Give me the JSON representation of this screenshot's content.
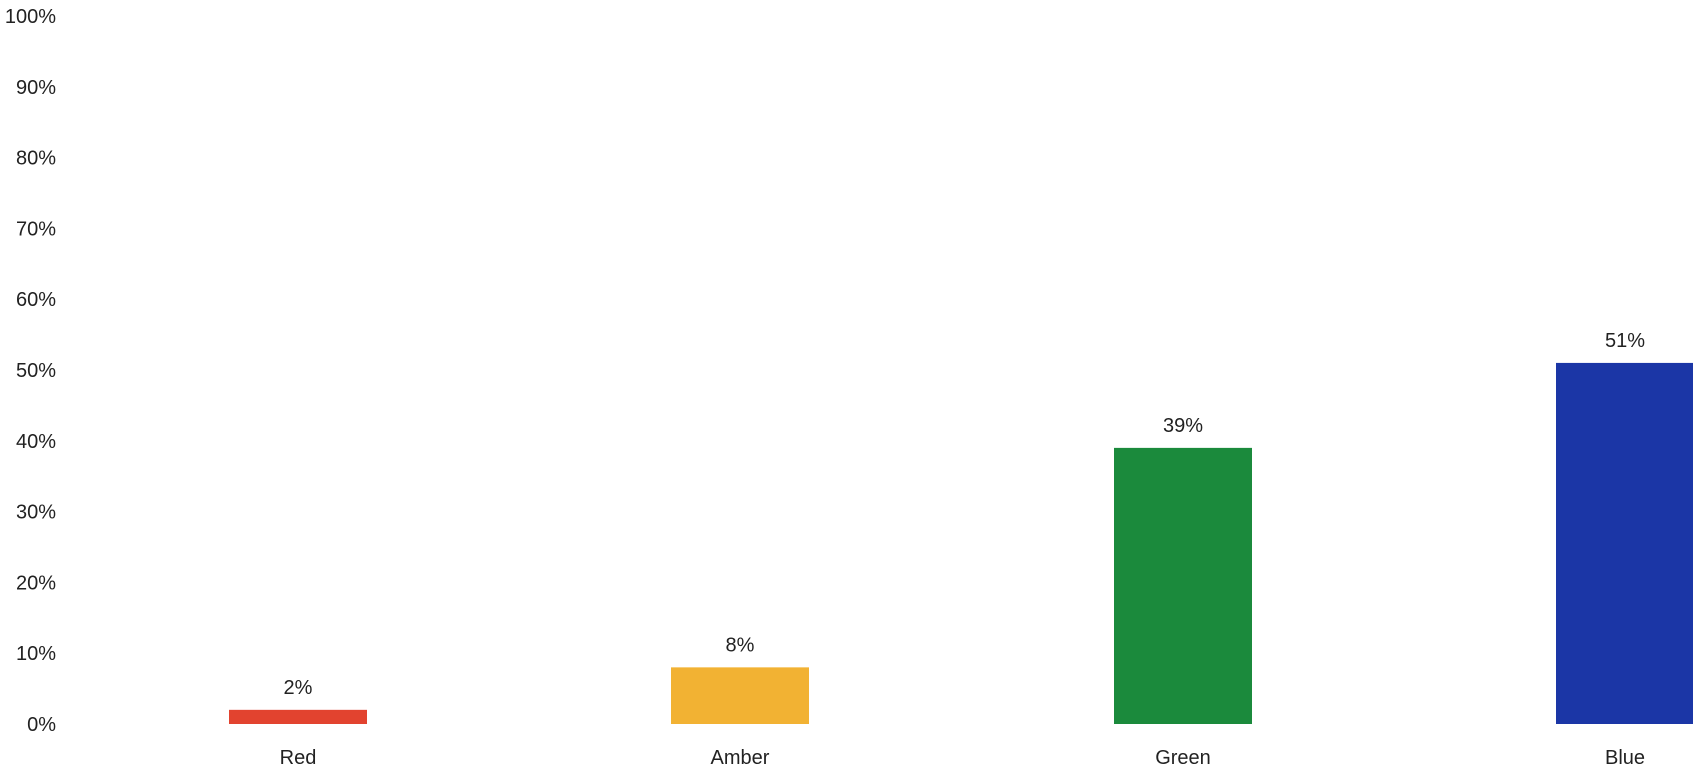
{
  "chart_data": {
    "type": "bar",
    "title": "",
    "xlabel": "",
    "ylabel": "",
    "categories": [
      "Red",
      "Amber",
      "Green",
      "Blue"
    ],
    "values": [
      2,
      8,
      39,
      51
    ],
    "data_labels": [
      "2%",
      "8%",
      "39%",
      "51%"
    ],
    "colors": [
      "#e2432f",
      "#f2b233",
      "#1b8a3c",
      "#1b36a6"
    ],
    "ylim": [
      0,
      100
    ],
    "yticks": [
      0,
      10,
      20,
      30,
      40,
      50,
      60,
      70,
      80,
      90,
      100
    ],
    "ytick_labels": [
      "0%",
      "10%",
      "20%",
      "30%",
      "40%",
      "50%",
      "60%",
      "70%",
      "80%",
      "90%",
      "100%"
    ],
    "grid": false,
    "legend": "none"
  }
}
